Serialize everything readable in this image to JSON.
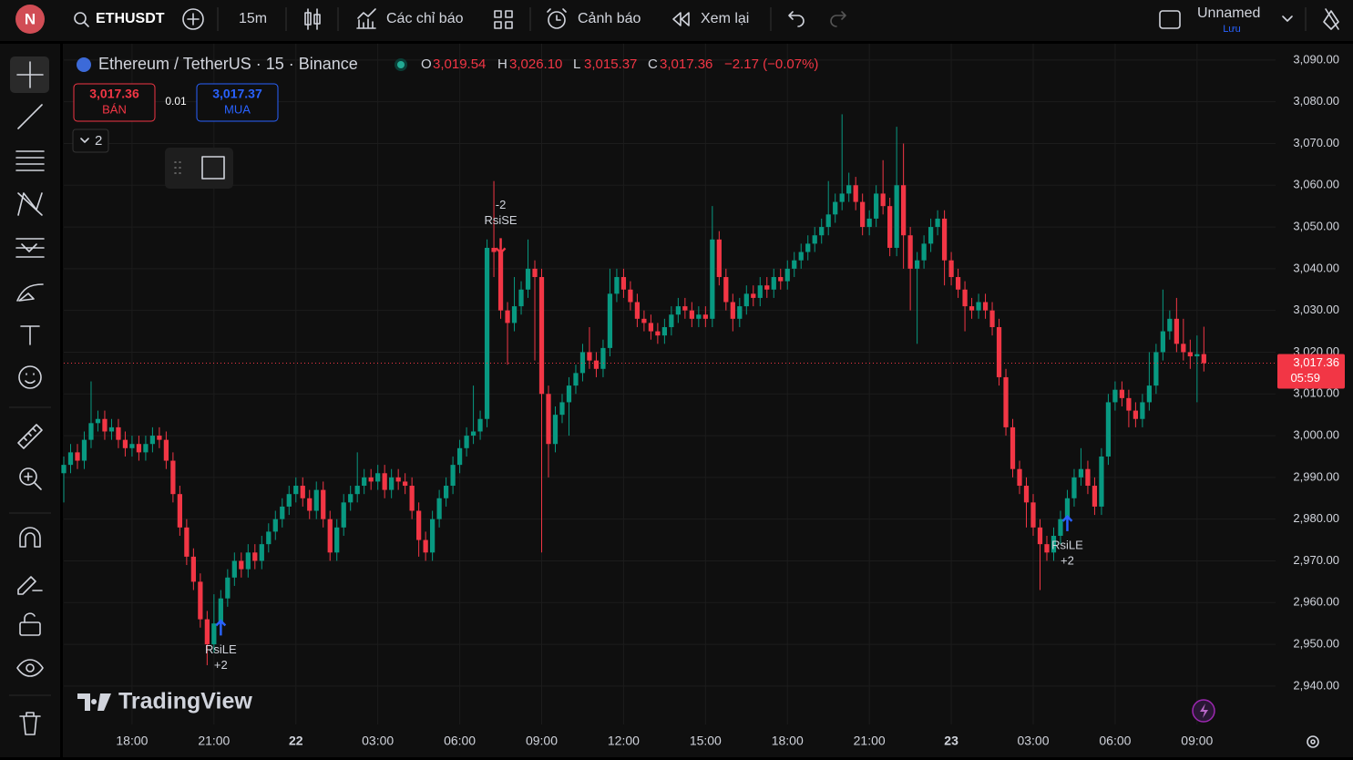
{
  "toolbar": {
    "avatar": "N",
    "symbol": "ETHUSDT",
    "interval": "15m",
    "indicators": "Các chỉ báo",
    "alerts": "Cảnh báo",
    "replay": "Xem lại",
    "layout_name": "Unnamed",
    "save": "Lưu"
  },
  "legend": {
    "title": "Ethereum / TetherUS · 15 · Binance",
    "o_label": "O",
    "o": "3,019.54",
    "h_label": "H",
    "h": "3,026.10",
    "l_label": "L",
    "l": "3,015.37",
    "c_label": "C",
    "c": "3,017.36",
    "change": "−2.17 (−0.07%)"
  },
  "trade": {
    "sell_price": "3,017.36",
    "sell": "BÁN",
    "qty": "0.01",
    "buy_price": "3,017.37",
    "buy": "MUA"
  },
  "indicators_count": "2",
  "watermark": "TradingView",
  "chart_data": {
    "type": "candlestick",
    "up_color": "#089981",
    "down_color": "#f23645",
    "xlim": [
      0,
      177.5
    ],
    "xticks": [
      {
        "value": 10,
        "label": "18:00"
      },
      {
        "value": 22,
        "label": "21:00"
      },
      {
        "value": 34,
        "label": "22"
      },
      {
        "value": 46,
        "label": "03:00"
      },
      {
        "value": 58,
        "label": "06:00"
      },
      {
        "value": 70,
        "label": "09:00"
      },
      {
        "value": 82,
        "label": "12:00"
      },
      {
        "value": 94,
        "label": "15:00"
      },
      {
        "value": 106,
        "label": "18:00"
      },
      {
        "value": 118,
        "label": "21:00"
      },
      {
        "value": 130,
        "label": "23"
      },
      {
        "value": 142,
        "label": "03:00"
      },
      {
        "value": 154,
        "label": "06:00"
      },
      {
        "value": 166,
        "label": "09:00"
      }
    ],
    "ylim": [
      2930.8,
      3093.9
    ],
    "yticks": [
      {
        "value": 3090,
        "label": "3,090.00"
      },
      {
        "value": 3080,
        "label": "3,080.00"
      },
      {
        "value": 3070,
        "label": "3,070.00"
      },
      {
        "value": 3060,
        "label": "3,060.00"
      },
      {
        "value": 3050,
        "label": "3,050.00"
      },
      {
        "value": 3040,
        "label": "3,040.00"
      },
      {
        "value": 3030,
        "label": "3,030.00"
      },
      {
        "value": 3020,
        "label": "3,020.00"
      },
      {
        "value": 3010,
        "label": "3,010.00"
      },
      {
        "value": 3000,
        "label": "3,000.00"
      },
      {
        "value": 2990,
        "label": "2,990.00"
      },
      {
        "value": 2980,
        "label": "2,980.00"
      },
      {
        "value": 2970,
        "label": "2,970.00"
      },
      {
        "value": 2960,
        "label": "2,960.00"
      },
      {
        "value": 2950,
        "label": "2,950.00"
      },
      {
        "value": 2940,
        "label": "2,940.00"
      }
    ],
    "grid": true,
    "open": [
      2991,
      2993,
      2996,
      2994,
      2999,
      3003,
      3004,
      3001,
      3002,
      2999,
      2997,
      2998,
      2996,
      2998,
      3000,
      2999,
      2994,
      2986,
      2978,
      2971,
      2965,
      2956,
      2950,
      2955,
      2961,
      2966,
      2970,
      2968,
      2972,
      2970,
      2974,
      2977,
      2980,
      2983,
      2986,
      2988,
      2985,
      2982,
      2987,
      2980,
      2972,
      2978,
      2984,
      2986,
      2988,
      2990,
      2989,
      2991,
      2987,
      2990,
      2989,
      2988,
      2982,
      2975,
      2972,
      2980,
      2985,
      2988,
      2993,
      2997,
      3000,
      3001,
      3004,
      3045,
      3044,
      3030,
      3027,
      3031,
      3035,
      3040,
      3038,
      3010,
      2998,
      3005,
      3008,
      3012,
      3015,
      3020,
      3018,
      3016,
      3021,
      3034,
      3038,
      3035,
      3032,
      3028,
      3027,
      3025,
      3024,
      3026,
      3029,
      3031,
      3030,
      3028,
      3029,
      3028,
      3047,
      3038,
      3032,
      3028,
      3031,
      3034,
      3033,
      3036,
      3035,
      3038,
      3037,
      3040,
      3042,
      3044,
      3046,
      3048,
      3050,
      3053,
      3056,
      3058,
      3060,
      3056,
      3050,
      3052,
      3058,
      3055,
      3045,
      3060,
      3048,
      3040,
      3042,
      3046,
      3050,
      3052,
      3042,
      3038,
      3035,
      3031,
      3030,
      3032,
      3030,
      3026,
      3014,
      3002,
      2992,
      2988,
      2984,
      2978,
      2974,
      2972,
      2976,
      2980,
      2985,
      2990,
      2992,
      2988,
      2983,
      2995,
      3008,
      3011,
      3009,
      3006,
      3004,
      3008,
      3012,
      3020,
      3025,
      3028,
      3022,
      3020,
      3019,
      3019.54
    ],
    "high": [
      2995,
      2998,
      2998,
      3001,
      3013,
      3006,
      3006,
      3004,
      3004,
      3001,
      3000,
      3000,
      3000,
      3002,
      3002,
      3001,
      2996,
      2988,
      2980,
      2973,
      2967,
      2958,
      2962,
      2963,
      2968,
      2972,
      2972,
      2974,
      2974,
      2976,
      2979,
      2982,
      2985,
      2988,
      2990,
      2990,
      2987,
      2989,
      2989,
      2982,
      2980,
      2986,
      2988,
      2996,
      2992,
      2992,
      2993,
      2993,
      2992,
      2992,
      2991,
      2990,
      2984,
      2977,
      2982,
      2987,
      2990,
      2995,
      2999,
      3002,
      3012,
      3006,
      3047,
      3061,
      3046,
      3032,
      3038,
      3037,
      3047,
      3042,
      3040,
      3012,
      3007,
      3010,
      3014,
      3017,
      3022,
      3026,
      3020,
      3023,
      3040,
      3040,
      3040,
      3037,
      3034,
      3030,
      3029,
      3027,
      3028,
      3031,
      3033,
      3033,
      3032,
      3031,
      3031,
      3055,
      3049,
      3040,
      3034,
      3033,
      3036,
      3036,
      3038,
      3038,
      3040,
      3040,
      3042,
      3044,
      3046,
      3048,
      3050,
      3052,
      3061,
      3058,
      3077,
      3063,
      3062,
      3058,
      3054,
      3060,
      3066,
      3057,
      3074,
      3070,
      3050,
      3044,
      3048,
      3052,
      3054,
      3054,
      3044,
      3040,
      3037,
      3033,
      3034,
      3034,
      3032,
      3028,
      3016,
      3004,
      2994,
      2990,
      2986,
      2980,
      2976,
      2978,
      2982,
      2987,
      2992,
      2997,
      2994,
      2990,
      2997,
      3010,
      3013,
      3013,
      3011,
      3008,
      3010,
      3020,
      3022,
      3035,
      3030,
      3033,
      3028,
      3023,
      3024,
      3026.1
    ],
    "low": [
      2984,
      2991,
      2992,
      2992,
      2997,
      3001,
      2999,
      2999,
      2997,
      2995,
      2995,
      2994,
      2994,
      2996,
      2997,
      2992,
      2984,
      2976,
      2969,
      2963,
      2954,
      2945,
      2948,
      2953,
      2959,
      2964,
      2966,
      2966,
      2968,
      2968,
      2972,
      2975,
      2978,
      2981,
      2984,
      2983,
      2980,
      2980,
      2978,
      2970,
      2970,
      2976,
      2982,
      2984,
      2986,
      2987,
      2987,
      2985,
      2985,
      2987,
      2986,
      2980,
      2971,
      2970,
      2970,
      2978,
      2983,
      2986,
      2991,
      2995,
      2998,
      2999,
      3002,
      3038,
      3028,
      3017,
      3025,
      3029,
      3033,
      3018,
      2972,
      2990,
      2996,
      3003,
      3000,
      3010,
      3013,
      3016,
      3014,
      3014,
      3019,
      3032,
      3033,
      3030,
      3026,
      3025,
      3023,
      3022,
      3022,
      3024,
      3027,
      3028,
      3026,
      3026,
      3026,
      3026,
      3036,
      3030,
      3025,
      3026,
      3029,
      3031,
      3031,
      3033,
      3033,
      3035,
      3035,
      3038,
      3040,
      3042,
      3044,
      3046,
      3048,
      3051,
      3054,
      3056,
      3054,
      3048,
      3048,
      3050,
      3053,
      3043,
      3043,
      3040,
      3030,
      3022,
      3040,
      3044,
      3048,
      3036,
      3036,
      3033,
      3025,
      3028,
      3028,
      3028,
      3024,
      3012,
      3000,
      2990,
      2986,
      2978,
      2976,
      2963,
      2970,
      2970,
      2974,
      2978,
      2983,
      2988,
      2986,
      2981,
      2981,
      2993,
      3006,
      3007,
      3002,
      3002,
      3002,
      3006,
      3010,
      3018,
      3023,
      3020,
      3018,
      3016,
      3008,
      3015.37
    ],
    "close": [
      2993,
      2996,
      2994,
      2999,
      3003,
      3004,
      3001,
      3002,
      2999,
      2997,
      2998,
      2996,
      2998,
      3000,
      2999,
      2994,
      2986,
      2978,
      2971,
      2965,
      2956,
      2950,
      2955,
      2961,
      2966,
      2970,
      2968,
      2972,
      2970,
      2974,
      2977,
      2980,
      2983,
      2986,
      2988,
      2985,
      2982,
      2987,
      2980,
      2972,
      2978,
      2984,
      2986,
      2988,
      2990,
      2989,
      2991,
      2987,
      2990,
      2989,
      2988,
      2982,
      2975,
      2972,
      2980,
      2985,
      2988,
      2993,
      2997,
      3000,
      3001,
      3004,
      3045,
      3044,
      3030,
      3027,
      3031,
      3035,
      3040,
      3038,
      3010,
      2998,
      3005,
      3008,
      3012,
      3015,
      3020,
      3018,
      3016,
      3021,
      3034,
      3038,
      3035,
      3032,
      3028,
      3027,
      3025,
      3024,
      3026,
      3029,
      3031,
      3030,
      3028,
      3029,
      3028,
      3047,
      3038,
      3032,
      3028,
      3031,
      3034,
      3033,
      3036,
      3035,
      3038,
      3037,
      3040,
      3042,
      3044,
      3046,
      3048,
      3050,
      3053,
      3056,
      3058,
      3060,
      3056,
      3050,
      3052,
      3058,
      3055,
      3045,
      3060,
      3048,
      3040,
      3042,
      3046,
      3050,
      3052,
      3042,
      3038,
      3035,
      3031,
      3030,
      3032,
      3030,
      3026,
      3014,
      3002,
      2992,
      2988,
      2984,
      2978,
      2974,
      2972,
      2976,
      2980,
      2985,
      2990,
      2992,
      2988,
      2983,
      2995,
      3008,
      3011,
      3009,
      3006,
      3004,
      3008,
      3012,
      3020,
      3025,
      3028,
      3022,
      3020,
      3019,
      3019.54,
      3017.36
    ],
    "price_line": {
      "value": 3017.36,
      "label": "3,017.36",
      "countdown": "05:59",
      "color": "#f23645"
    },
    "signals": [
      {
        "candle": 23,
        "kind": "long",
        "labels": [
          "RsiLE",
          "+2"
        ],
        "color": "#2962ff"
      },
      {
        "candle": 64,
        "kind": "short",
        "labels": [
          "-2",
          "RsiSE"
        ],
        "color": "#f23645"
      },
      {
        "candle": 147,
        "kind": "long",
        "labels": [
          "RsiLE",
          "+2"
        ],
        "color": "#2962ff"
      }
    ]
  }
}
